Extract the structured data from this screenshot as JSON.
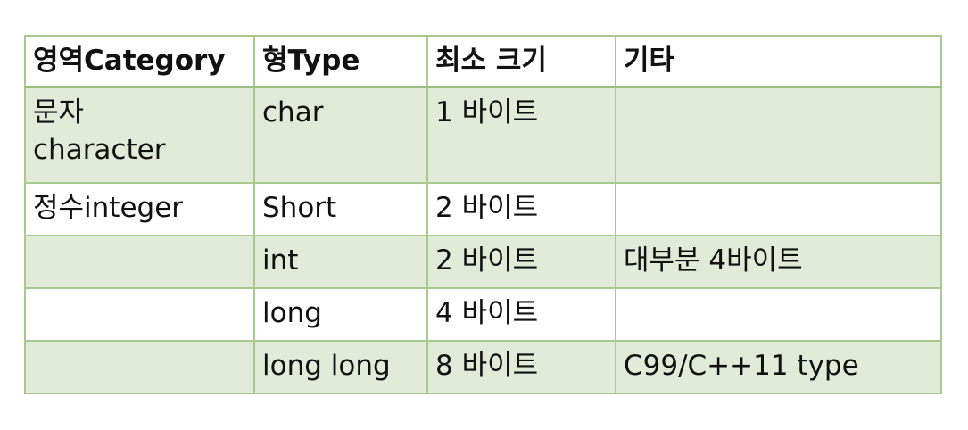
{
  "table": {
    "headers": [
      "영역Category",
      "형Type",
      "최소 크기",
      "기타"
    ],
    "rows": [
      {
        "category": "문자\ncharacter",
        "type": "char",
        "min_size": "1 바이트",
        "other": ""
      },
      {
        "category": "정수integer",
        "type": "Short",
        "min_size": "2 바이트",
        "other": ""
      },
      {
        "category": "",
        "type": "int",
        "min_size": "2 바이트",
        "other": "대부분 4바이트"
      },
      {
        "category": "",
        "type": "long",
        "min_size": "4 바이트",
        "other": ""
      },
      {
        "category": "",
        "type": "long long",
        "min_size": "8 바이트",
        "other": "C99/C++11 type"
      }
    ]
  },
  "colors": {
    "border": "#a9c98f",
    "row_green": "#e1ebd8",
    "row_white": "#ffffff"
  }
}
